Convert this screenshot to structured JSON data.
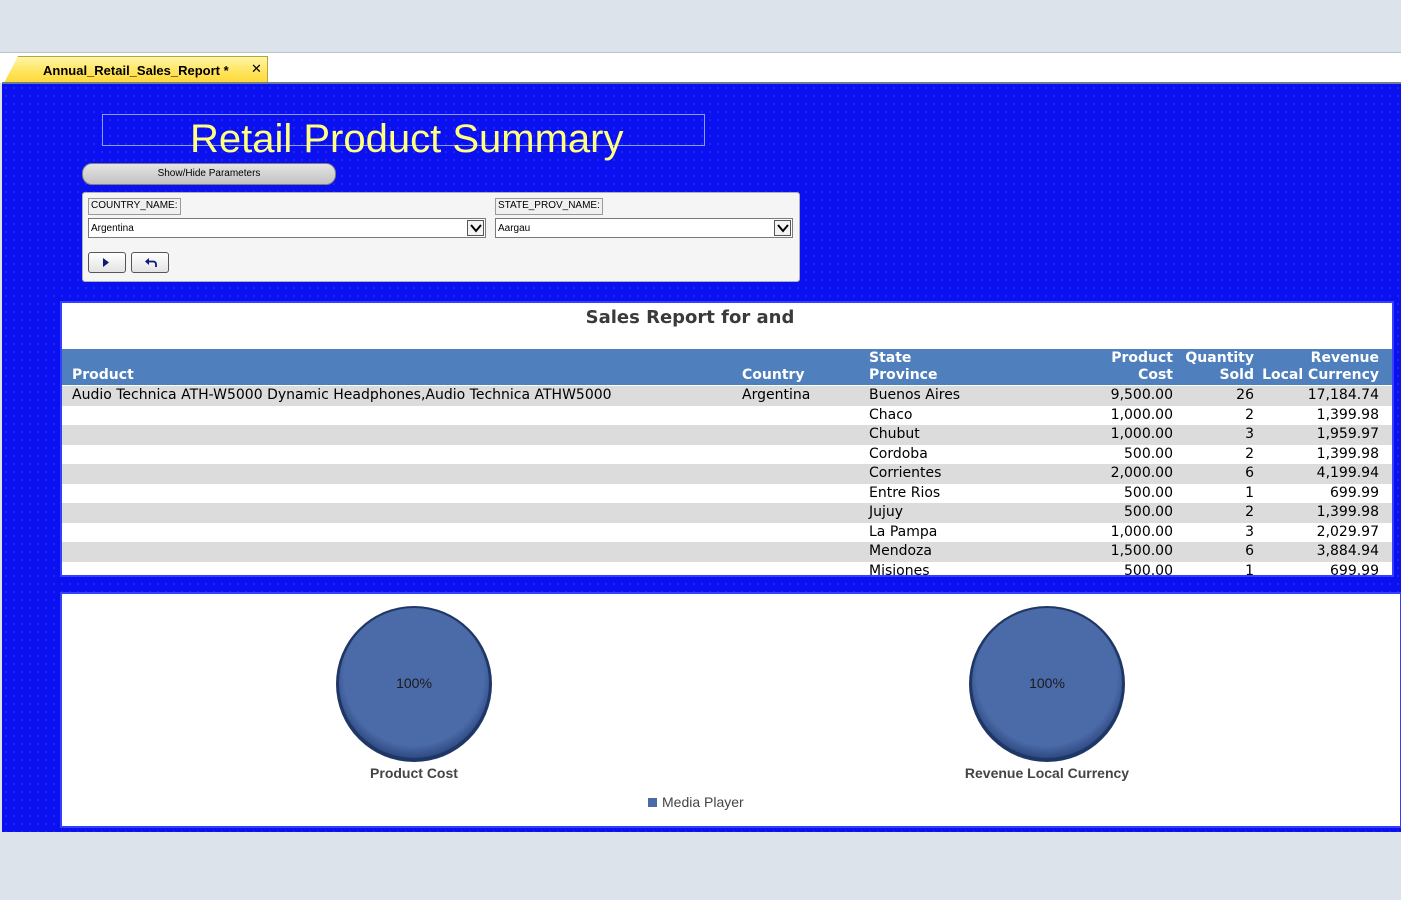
{
  "tab": {
    "label": "Annual_Retail_Sales_Report *",
    "close_glyph": "✕"
  },
  "report": {
    "title": "Retail Product Summary",
    "toggle_label": "Show/Hide Parameters"
  },
  "params": {
    "country": {
      "label": "COUNTRY_NAME:",
      "value": "Argentina"
    },
    "state": {
      "label": "STATE_PROV_NAME:",
      "value": "Aargau"
    },
    "run_icon": "play-icon",
    "reset_icon": "undo-icon"
  },
  "table": {
    "title": "Sales Report for and",
    "headers": {
      "product": "Product",
      "country": "Country",
      "state_line1": "State",
      "state_line2": "Province",
      "cost_line1": "Product",
      "cost_line2": "Cost",
      "qty_line1": "Quantity",
      "qty_line2": "Sold",
      "rev_line1": "Revenue",
      "rev_line2": "Local Currency"
    },
    "rows": [
      {
        "product": "Audio Technica ATH-W5000 Dynamic Headphones,Audio Technica ATHW5000",
        "country": "Argentina",
        "state": "Buenos Aires",
        "cost": "9,500.00",
        "qty": "26",
        "revenue": "17,184.74"
      },
      {
        "product": "",
        "country": "",
        "state": "Chaco",
        "cost": "1,000.00",
        "qty": "2",
        "revenue": "1,399.98"
      },
      {
        "product": "",
        "country": "",
        "state": "Chubut",
        "cost": "1,000.00",
        "qty": "3",
        "revenue": "1,959.97"
      },
      {
        "product": "",
        "country": "",
        "state": "Cordoba",
        "cost": "500.00",
        "qty": "2",
        "revenue": "1,399.98"
      },
      {
        "product": "",
        "country": "",
        "state": "Corrientes",
        "cost": "2,000.00",
        "qty": "6",
        "revenue": "4,199.94"
      },
      {
        "product": "",
        "country": "",
        "state": "Entre Rios",
        "cost": "500.00",
        "qty": "1",
        "revenue": "699.99"
      },
      {
        "product": "",
        "country": "",
        "state": "Jujuy",
        "cost": "500.00",
        "qty": "2",
        "revenue": "1,399.98"
      },
      {
        "product": "",
        "country": "",
        "state": "La Pampa",
        "cost": "1,000.00",
        "qty": "3",
        "revenue": "2,029.97"
      },
      {
        "product": "",
        "country": "",
        "state": "Mendoza",
        "cost": "1,500.00",
        "qty": "6",
        "revenue": "3,884.94"
      },
      {
        "product": "",
        "country": "",
        "state": "Misiones",
        "cost": "500.00",
        "qty": "1",
        "revenue": "699.99"
      }
    ]
  },
  "charts": {
    "pies": [
      {
        "label": "Product Cost",
        "percent_label": "100%",
        "value": 1
      },
      {
        "label": "Revenue Local Currency",
        "percent_label": "100%",
        "value": 1
      }
    ],
    "legend": {
      "label": "Media Player",
      "color": "#4a6aa8"
    }
  },
  "colors": {
    "canvas": "#0a10ef",
    "title": "#ffff80",
    "header": "#4f80bd",
    "pie": "#4a6aa8"
  }
}
